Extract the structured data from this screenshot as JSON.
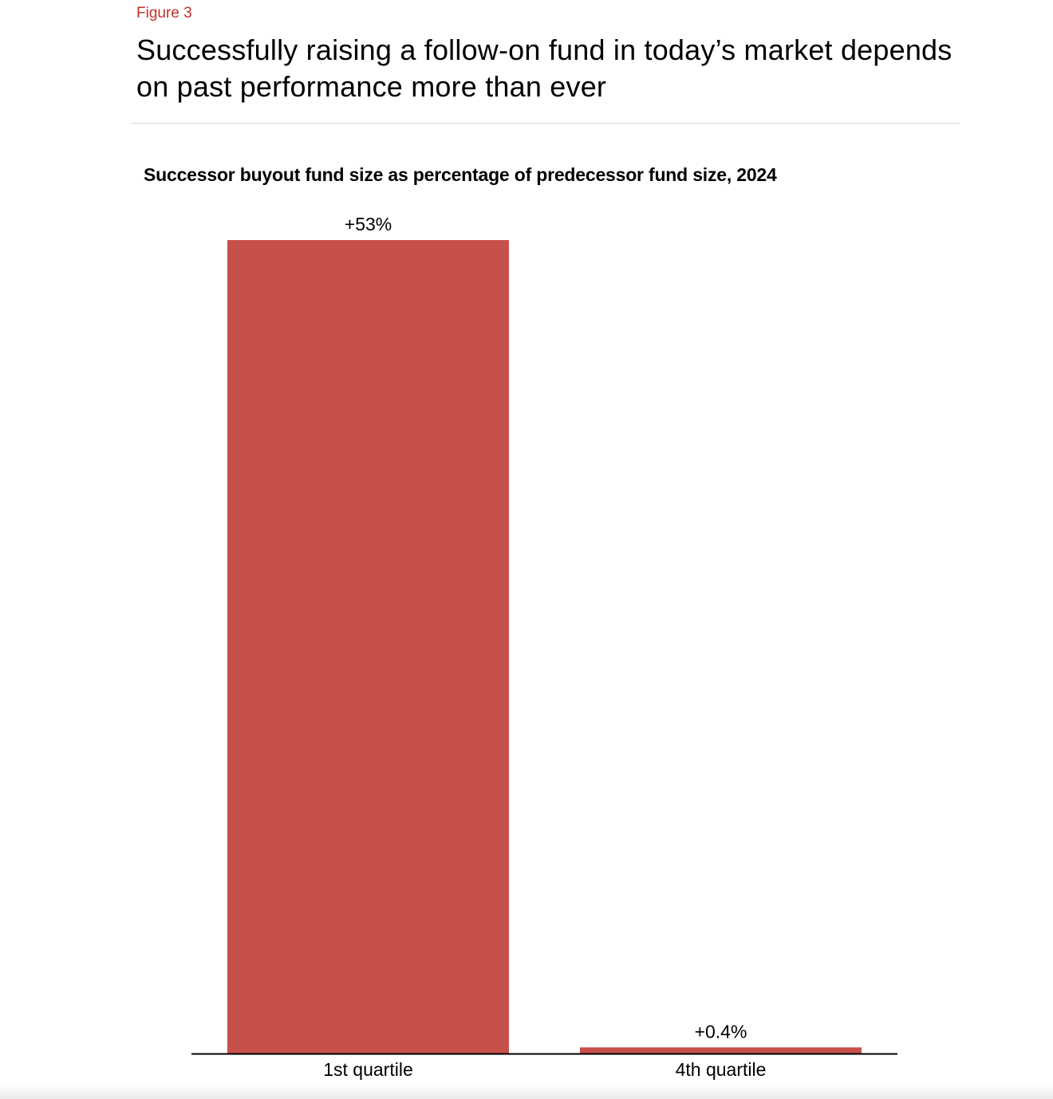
{
  "header": {
    "figure_label": "Figure 3",
    "headline": "Successfully raising a follow-on fund in today’s market depends on past performance more than ever"
  },
  "chart_data": {
    "type": "bar",
    "title": "Successor buyout fund size as percentage of predecessor fund size, 2024",
    "categories": [
      "1st quartile",
      "4th quartile"
    ],
    "values": [
      53,
      0.4
    ],
    "data_labels": [
      "+53%",
      "+0.4%"
    ],
    "xlabel": "",
    "ylabel": "",
    "ylim": [
      0,
      53
    ],
    "grid": false,
    "legend": "none",
    "bar_color": "#c8504a",
    "axis_color": "#000000"
  }
}
